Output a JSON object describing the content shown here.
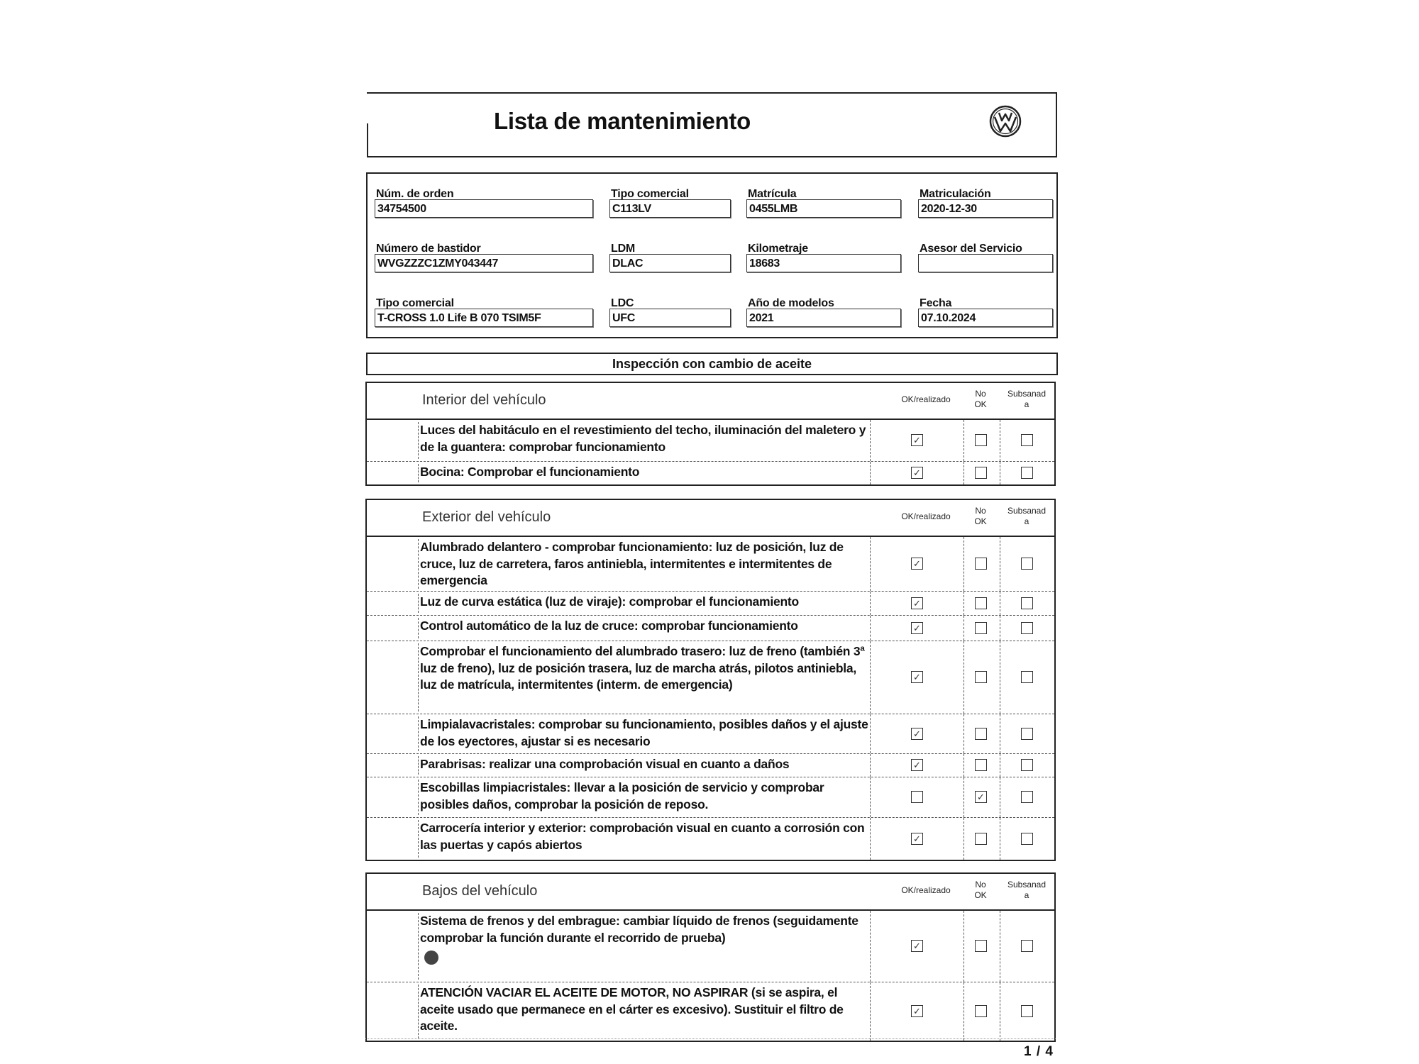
{
  "header": {
    "title": "Lista de mantenimiento",
    "logo": "vw-logo"
  },
  "info": {
    "fields": [
      {
        "label": "Núm. de orden",
        "value": "34754500"
      },
      {
        "label": "Tipo comercial",
        "value": "C113LV"
      },
      {
        "label": "Matrícula",
        "value": "0455LMB"
      },
      {
        "label": "Matriculación",
        "value": "2020-12-30"
      },
      {
        "label": "Número de bastidor",
        "value": "WVGZZZC1ZMY043447"
      },
      {
        "label": "LDM",
        "value": "DLAC"
      },
      {
        "label": "Kilometraje",
        "value": "18683"
      },
      {
        "label": "Asesor del Servicio",
        "value": ""
      },
      {
        "label": "Tipo comercial",
        "value": "T-CROSS 1.0 Life B 070 TSIM5F"
      },
      {
        "label": "LDC",
        "value": "UFC"
      },
      {
        "label": "Año de modelos",
        "value": "2021"
      },
      {
        "label": "Fecha",
        "value": "07.10.2024"
      }
    ]
  },
  "banner": "Inspección con cambio de aceite",
  "columns": {
    "ok": "OK/realizado",
    "nook_1": "No",
    "nook_2": "OK",
    "subs_1": "Subsanad",
    "subs_2": "a"
  },
  "check_mark": "✓",
  "sections": [
    {
      "title": "Interior del vehículo",
      "rows": [
        {
          "text": "Luces del habitáculo en el revestimiento del techo, iluminación del maletero y de la guantera: comprobar funcionamiento",
          "ok": true,
          "nook": false,
          "subs": false
        },
        {
          "text": "Bocina: Comprobar el funcionamiento",
          "ok": true,
          "nook": false,
          "subs": false
        }
      ]
    },
    {
      "title": "Exterior del vehículo",
      "rows": [
        {
          "text": "Alumbrado delantero - comprobar funcionamiento: luz de posición, luz de cruce, luz de carretera, faros antiniebla, intermitentes e intermitentes de emergencia",
          "ok": true,
          "nook": false,
          "subs": false
        },
        {
          "text": "Luz de curva estática (luz de viraje): comprobar el funcionamiento",
          "ok": true,
          "nook": false,
          "subs": false
        },
        {
          "text": "Control automático de la luz de cruce: comprobar funcionamiento",
          "ok": true,
          "nook": false,
          "subs": false
        },
        {
          "text": "Comprobar el funcionamiento del alumbrado trasero: luz de freno (también 3ª luz de freno), luz de posición trasera, luz de marcha atrás, pilotos antiniebla, luz de matrícula, intermitentes (interm. de emergencia)",
          "ok": true,
          "nook": false,
          "subs": false
        },
        {
          "text": "Limpialavacristales: comprobar su funcionamiento, posibles daños y el ajuste de los eyectores, ajustar si es necesario",
          "ok": true,
          "nook": false,
          "subs": false
        },
        {
          "text": "Parabrisas: realizar una comprobación visual en cuanto a daños",
          "ok": true,
          "nook": false,
          "subs": false
        },
        {
          "text": "Escobillas limpiacristales: llevar a la posición de servicio y comprobar posibles daños, comprobar la posición de reposo.",
          "ok": false,
          "nook": true,
          "subs": false
        },
        {
          "text": "Carrocería interior y exterior: comprobación visual en cuanto a corrosión con las puertas y capós abiertos",
          "ok": true,
          "nook": false,
          "subs": false
        }
      ]
    },
    {
      "title": "Bajos del vehículo",
      "rows": [
        {
          "text": "Sistema de frenos y del embrague: cambiar líquido de frenos (seguidamente comprobar la función durante el recorrido de prueba)",
          "ok": true,
          "nook": false,
          "subs": false,
          "icon": "filled-circle-icon"
        },
        {
          "text": "ATENCIÓN VACIAR EL ACEITE DE MOTOR, NO ASPIRAR (si se aspira, el aceite usado que permanece en el cárter es excesivo). Sustituir el filtro de aceite.",
          "ok": true,
          "nook": false,
          "subs": false
        }
      ]
    }
  ],
  "footer": {
    "page": "1 / 4"
  }
}
